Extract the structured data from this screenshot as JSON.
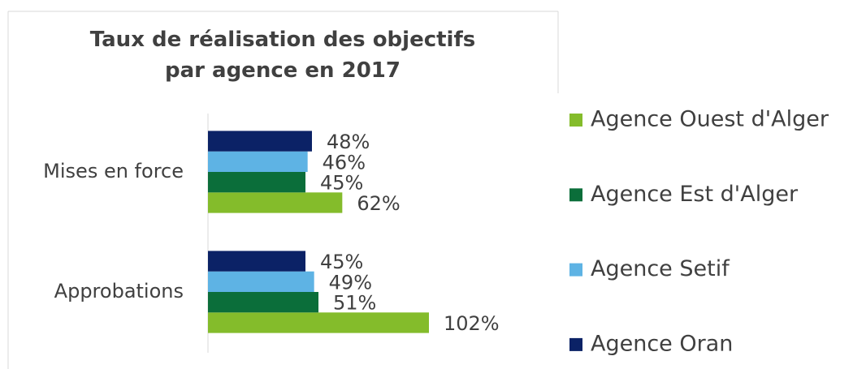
{
  "chart_data": {
    "type": "bar",
    "orientation": "horizontal",
    "title": "Taux de réalisation des objectifs par agence en 2017",
    "categories": [
      "Mises en force",
      "Approbations"
    ],
    "series": [
      {
        "name": "Agence Ouest d'Alger",
        "color": "#84bc2b",
        "values": [
          62,
          102
        ],
        "value_labels": [
          "62%",
          "102%"
        ]
      },
      {
        "name": "Agence Est d'Alger",
        "color": "#0b6e3a",
        "values": [
          45,
          51
        ],
        "value_labels": [
          "45%",
          "51%"
        ]
      },
      {
        "name": "Agence Setif",
        "color": "#5eb3e4",
        "values": [
          46,
          49
        ],
        "value_labels": [
          "46%",
          "49%"
        ]
      },
      {
        "name": "Agence Oran",
        "color": "#0b2266",
        "values": [
          48,
          45
        ],
        "value_labels": [
          "48%",
          "45%"
        ]
      }
    ],
    "legend": "right"
  }
}
